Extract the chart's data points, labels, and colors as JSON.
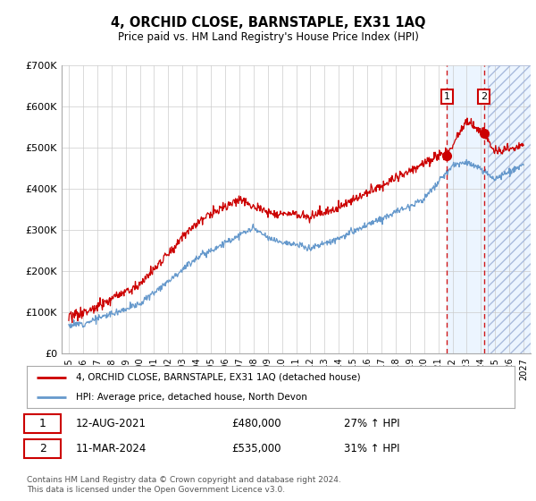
{
  "title": "4, ORCHID CLOSE, BARNSTAPLE, EX31 1AQ",
  "subtitle": "Price paid vs. HM Land Registry's House Price Index (HPI)",
  "legend_line1": "4, ORCHID CLOSE, BARNSTAPLE, EX31 1AQ (detached house)",
  "legend_line2": "HPI: Average price, detached house, North Devon",
  "annotation1_date": "12-AUG-2021",
  "annotation1_price": "£480,000",
  "annotation1_hpi": "27% ↑ HPI",
  "annotation2_date": "11-MAR-2024",
  "annotation2_price": "£535,000",
  "annotation2_hpi": "31% ↑ HPI",
  "footer": "Contains HM Land Registry data © Crown copyright and database right 2024.\nThis data is licensed under the Open Government Licence v3.0.",
  "red_color": "#cc0000",
  "blue_color": "#6699cc",
  "background_color": "#ffffff",
  "grid_color": "#cccccc",
  "ylim": [
    0,
    700000
  ],
  "yticks": [
    0,
    100000,
    200000,
    300000,
    400000,
    500000,
    600000,
    700000
  ],
  "ytick_labels": [
    "£0",
    "£100K",
    "£200K",
    "£300K",
    "£400K",
    "£500K",
    "£600K",
    "£700K"
  ],
  "xlim_start": 1994.5,
  "xlim_end": 2027.5,
  "xtick_years": [
    1995,
    1996,
    1997,
    1998,
    1999,
    2000,
    2001,
    2002,
    2003,
    2004,
    2005,
    2006,
    2007,
    2008,
    2009,
    2010,
    2011,
    2012,
    2013,
    2014,
    2015,
    2016,
    2017,
    2018,
    2019,
    2020,
    2021,
    2022,
    2023,
    2024,
    2025,
    2026,
    2027
  ],
  "ann1_x": 2021.62,
  "ann2_x": 2024.2,
  "ann1_y": 480000,
  "ann2_y": 535000,
  "hatch_start": 2024.5,
  "shade_start": 2021.62
}
